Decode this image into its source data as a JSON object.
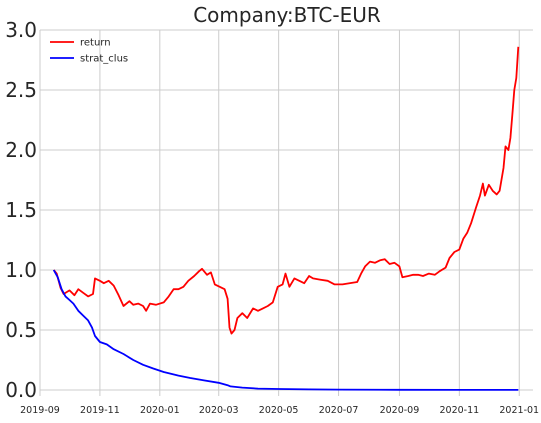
{
  "chart_data": {
    "type": "line",
    "title": "Company:BTC-EUR",
    "xlabel": "",
    "ylabel": "",
    "ylim": [
      -0.05,
      3.0
    ],
    "xlim": [
      "2019-09-01",
      "2021-01-15"
    ],
    "grid": true,
    "legend_position": "top-left",
    "y_ticks": [
      "0.0",
      "0.5",
      "1.0",
      "1.5",
      "2.0",
      "2.5",
      "3.0"
    ],
    "x_ticks": [
      "2019-09",
      "2019-11",
      "2020-01",
      "2020-03",
      "2020-05",
      "2020-07",
      "2020-09",
      "2020-11",
      "2021-01"
    ],
    "series": [
      {
        "name": "return",
        "color": "#ff0000",
        "points": [
          [
            "2019-09-15",
            1.0
          ],
          [
            "2019-09-18",
            0.97
          ],
          [
            "2019-09-22",
            0.85
          ],
          [
            "2019-09-25",
            0.8
          ],
          [
            "2019-10-01",
            0.83
          ],
          [
            "2019-10-06",
            0.79
          ],
          [
            "2019-10-10",
            0.84
          ],
          [
            "2019-10-15",
            0.81
          ],
          [
            "2019-10-20",
            0.78
          ],
          [
            "2019-10-25",
            0.8
          ],
          [
            "2019-10-27",
            0.93
          ],
          [
            "2019-11-01",
            0.91
          ],
          [
            "2019-11-05",
            0.89
          ],
          [
            "2019-11-10",
            0.91
          ],
          [
            "2019-11-15",
            0.87
          ],
          [
            "2019-11-20",
            0.79
          ],
          [
            "2019-11-25",
            0.7
          ],
          [
            "2019-12-01",
            0.74
          ],
          [
            "2019-12-05",
            0.71
          ],
          [
            "2019-12-10",
            0.72
          ],
          [
            "2019-12-15",
            0.7
          ],
          [
            "2019-12-18",
            0.66
          ],
          [
            "2019-12-22",
            0.72
          ],
          [
            "2019-12-28",
            0.71
          ],
          [
            "2020-01-05",
            0.73
          ],
          [
            "2020-01-10",
            0.78
          ],
          [
            "2020-01-15",
            0.84
          ],
          [
            "2020-01-20",
            0.84
          ],
          [
            "2020-01-25",
            0.86
          ],
          [
            "2020-01-30",
            0.91
          ],
          [
            "2020-02-05",
            0.95
          ],
          [
            "2020-02-10",
            0.99
          ],
          [
            "2020-02-13",
            1.01
          ],
          [
            "2020-02-18",
            0.96
          ],
          [
            "2020-02-22",
            0.98
          ],
          [
            "2020-02-26",
            0.88
          ],
          [
            "2020-03-02",
            0.86
          ],
          [
            "2020-03-07",
            0.84
          ],
          [
            "2020-03-10",
            0.76
          ],
          [
            "2020-03-12",
            0.52
          ],
          [
            "2020-03-14",
            0.47
          ],
          [
            "2020-03-17",
            0.5
          ],
          [
            "2020-03-20",
            0.6
          ],
          [
            "2020-03-25",
            0.64
          ],
          [
            "2020-03-30",
            0.6
          ],
          [
            "2020-04-05",
            0.68
          ],
          [
            "2020-04-10",
            0.66
          ],
          [
            "2020-04-15",
            0.68
          ],
          [
            "2020-04-20",
            0.7
          ],
          [
            "2020-04-25",
            0.73
          ],
          [
            "2020-04-30",
            0.86
          ],
          [
            "2020-05-05",
            0.88
          ],
          [
            "2020-05-08",
            0.97
          ],
          [
            "2020-05-12",
            0.86
          ],
          [
            "2020-05-17",
            0.93
          ],
          [
            "2020-05-22",
            0.91
          ],
          [
            "2020-05-27",
            0.89
          ],
          [
            "2020-06-01",
            0.95
          ],
          [
            "2020-06-05",
            0.93
          ],
          [
            "2020-06-12",
            0.92
          ],
          [
            "2020-06-20",
            0.91
          ],
          [
            "2020-06-27",
            0.88
          ],
          [
            "2020-07-05",
            0.88
          ],
          [
            "2020-07-12",
            0.89
          ],
          [
            "2020-07-20",
            0.9
          ],
          [
            "2020-07-24",
            0.97
          ],
          [
            "2020-07-28",
            1.03
          ],
          [
            "2020-08-02",
            1.07
          ],
          [
            "2020-08-07",
            1.06
          ],
          [
            "2020-08-12",
            1.08
          ],
          [
            "2020-08-17",
            1.09
          ],
          [
            "2020-08-22",
            1.05
          ],
          [
            "2020-08-27",
            1.06
          ],
          [
            "2020-09-01",
            1.03
          ],
          [
            "2020-09-04",
            0.94
          ],
          [
            "2020-09-10",
            0.95
          ],
          [
            "2020-09-15",
            0.96
          ],
          [
            "2020-09-20",
            0.96
          ],
          [
            "2020-09-25",
            0.95
          ],
          [
            "2020-10-01",
            0.97
          ],
          [
            "2020-10-07",
            0.96
          ],
          [
            "2020-10-12",
            0.99
          ],
          [
            "2020-10-18",
            1.02
          ],
          [
            "2020-10-22",
            1.1
          ],
          [
            "2020-10-27",
            1.15
          ],
          [
            "2020-11-01",
            1.17
          ],
          [
            "2020-11-05",
            1.26
          ],
          [
            "2020-11-09",
            1.31
          ],
          [
            "2020-11-13",
            1.39
          ],
          [
            "2020-11-18",
            1.52
          ],
          [
            "2020-11-22",
            1.62
          ],
          [
            "2020-11-25",
            1.72
          ],
          [
            "2020-11-27",
            1.62
          ],
          [
            "2020-12-01",
            1.71
          ],
          [
            "2020-12-05",
            1.66
          ],
          [
            "2020-12-09",
            1.63
          ],
          [
            "2020-12-12",
            1.66
          ],
          [
            "2020-12-16",
            1.85
          ],
          [
            "2020-12-18",
            2.03
          ],
          [
            "2020-12-21",
            2.0
          ],
          [
            "2020-12-23",
            2.1
          ],
          [
            "2020-12-25",
            2.3
          ],
          [
            "2020-12-27",
            2.5
          ],
          [
            "2020-12-29",
            2.6
          ],
          [
            "2020-12-31",
            2.86
          ]
        ]
      },
      {
        "name": "strat_clus",
        "color": "#0000ff",
        "points": [
          [
            "2019-09-15",
            1.0
          ],
          [
            "2019-09-19",
            0.94
          ],
          [
            "2019-09-23",
            0.84
          ],
          [
            "2019-09-27",
            0.78
          ],
          [
            "2019-10-01",
            0.75
          ],
          [
            "2019-10-05",
            0.72
          ],
          [
            "2019-10-10",
            0.66
          ],
          [
            "2019-10-15",
            0.62
          ],
          [
            "2019-10-20",
            0.58
          ],
          [
            "2019-10-24",
            0.52
          ],
          [
            "2019-10-27",
            0.45
          ],
          [
            "2019-11-01",
            0.4
          ],
          [
            "2019-11-08",
            0.38
          ],
          [
            "2019-11-15",
            0.34
          ],
          [
            "2019-11-25",
            0.3
          ],
          [
            "2019-12-05",
            0.25
          ],
          [
            "2019-12-15",
            0.21
          ],
          [
            "2019-12-25",
            0.18
          ],
          [
            "2020-01-05",
            0.15
          ],
          [
            "2020-01-20",
            0.12
          ],
          [
            "2020-02-01",
            0.1
          ],
          [
            "2020-02-15",
            0.08
          ],
          [
            "2020-03-01",
            0.06
          ],
          [
            "2020-03-10",
            0.04
          ],
          [
            "2020-03-13",
            0.03
          ],
          [
            "2020-03-25",
            0.02
          ],
          [
            "2020-04-10",
            0.012
          ],
          [
            "2020-05-01",
            0.008
          ],
          [
            "2020-06-01",
            0.005
          ],
          [
            "2020-07-01",
            0.003
          ],
          [
            "2020-09-01",
            0.002
          ],
          [
            "2020-11-01",
            0.001
          ],
          [
            "2020-12-31",
            0.001
          ]
        ]
      }
    ]
  }
}
